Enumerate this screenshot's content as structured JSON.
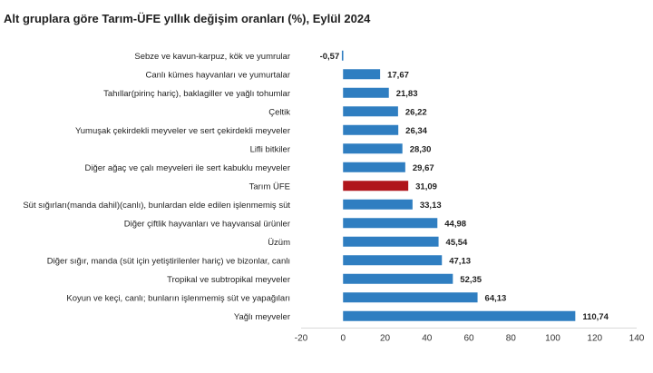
{
  "title": "Alt gruplara göre Tarım-ÜFE yıllık değişim oranları (%), Eylül 2024",
  "colors": {
    "bar": "#2f7ec1",
    "highlight": "#b0151b",
    "axis": "#d9d9d9"
  },
  "chart_data": {
    "type": "bar",
    "orientation": "horizontal",
    "title": "Alt gruplara göre Tarım-ÜFE yıllık değişim oranları (%), Eylül 2024",
    "categories": [
      "Sebze ve kavun-karpuz, kök ve yumrular",
      "Canlı kümes hayvanları ve yumurtalar",
      "Tahıllar(pirinç hariç), baklagiller ve yağlı tohumlar",
      "Çeltik",
      "Yumuşak çekirdekli meyveler ve sert çekirdekli meyveler",
      "Lifli bitkiler",
      "Diğer ağaç ve çalı meyveleri ile sert kabuklu meyveler",
      "Tarım ÜFE",
      "Süt sığırları(manda dahil)(canlı), bunlardan elde edilen işlenmemiş süt",
      "Diğer çiftlik hayvanları ve hayvansal ürünler",
      "Üzüm",
      "Diğer sığır, manda (süt için yetiştirilenler hariç) ve bizonlar, canlı",
      "Tropikal ve subtropikal meyveler",
      "Koyun ve keçi, canlı; bunların işlenmemiş süt ve yapağıları",
      "Yağlı meyveler"
    ],
    "values": [
      -0.57,
      17.67,
      21.83,
      26.22,
      26.34,
      28.3,
      29.67,
      31.09,
      33.13,
      44.98,
      45.54,
      47.13,
      52.35,
      64.13,
      110.74
    ],
    "value_labels": [
      "-0,57",
      "17,67",
      "21,83",
      "26,22",
      "26,34",
      "28,30",
      "29,67",
      "31,09",
      "33,13",
      "44,98",
      "45,54",
      "47,13",
      "52,35",
      "64,13",
      "110,74"
    ],
    "highlight": "Tarım ÜFE",
    "xlim": [
      -20,
      140
    ],
    "xticks": [
      -20,
      0,
      20,
      40,
      60,
      80,
      100,
      120,
      140
    ],
    "grid": false
  }
}
